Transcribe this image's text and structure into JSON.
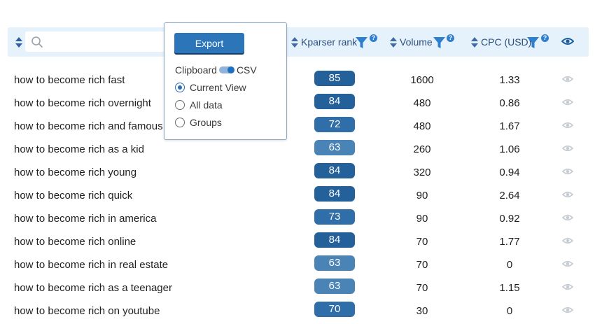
{
  "search": {
    "placeholder": ""
  },
  "columns": {
    "kparser_rank": "Kparser rank",
    "volume": "Volume",
    "cpc": "CPC (USD)",
    "help_glyph": "?"
  },
  "export_popup": {
    "button_label": "Export",
    "toggle_left_label": "Clipboard",
    "toggle_right_label": "CSV",
    "options": [
      "Current View",
      "All data",
      "Groups"
    ],
    "selected_option": "Current View"
  },
  "rows": [
    {
      "keyword": "how to become rich fast",
      "rank": "85",
      "volume": "1600",
      "cpc": "1.33"
    },
    {
      "keyword": "how to become rich overnight",
      "rank": "84",
      "volume": "480",
      "cpc": "0.86"
    },
    {
      "keyword": "how to become rich and famous",
      "rank": "72",
      "volume": "480",
      "cpc": "1.67"
    },
    {
      "keyword": "how to become rich as a kid",
      "rank": "63",
      "volume": "260",
      "cpc": "1.06"
    },
    {
      "keyword": "how to become rich young",
      "rank": "84",
      "volume": "320",
      "cpc": "0.94"
    },
    {
      "keyword": "how to become rich quick",
      "rank": "84",
      "volume": "90",
      "cpc": "2.64"
    },
    {
      "keyword": "how to become rich in america",
      "rank": "73",
      "volume": "90",
      "cpc": "0.92"
    },
    {
      "keyword": "how to become rich online",
      "rank": "84",
      "volume": "70",
      "cpc": "1.77"
    },
    {
      "keyword": "how to become rich in real estate",
      "rank": "63",
      "volume": "70",
      "cpc": "0"
    },
    {
      "keyword": "how to become rich as a teenager",
      "rank": "63",
      "volume": "70",
      "cpc": "1.15"
    },
    {
      "keyword": "how to become rich on youtube",
      "rank": "70",
      "volume": "30",
      "cpc": "0"
    }
  ],
  "colors": {
    "header_bg": "#e6f2fb",
    "rank_high": "#24609a",
    "rank_mid": "#2f6ea9",
    "rank_low": "#4a83b6",
    "accent": "#2b75b8",
    "eye_muted": "#c5cbd2",
    "eye_header": "#1e5f9e"
  },
  "icons": {
    "sort": "sort-arrows-icon",
    "search": "search-icon",
    "filter": "funnel-icon",
    "help": "help-icon",
    "view": "eye-icon"
  }
}
